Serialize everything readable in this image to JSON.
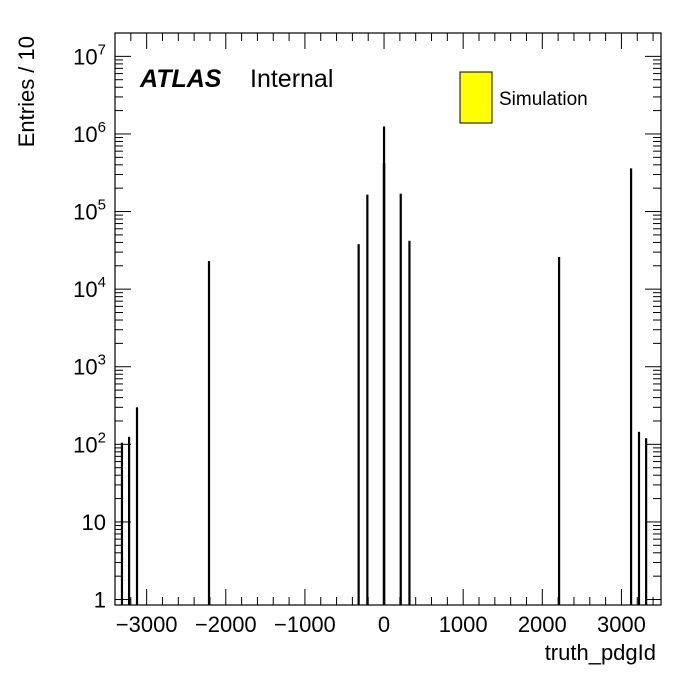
{
  "chart_data": {
    "type": "bar",
    "xlabel": "truth_pdgId",
    "ylabel": "Entries / 10",
    "yscale": "log",
    "xlim": [
      -3400,
      3500
    ],
    "ylim": [
      0.85,
      20000000
    ],
    "x_ticks": [
      -3000,
      -2000,
      -1000,
      0,
      1000,
      2000,
      3000
    ],
    "x_tick_labels": [
      "−3000",
      "−2000",
      "−1000",
      "0",
      "1000",
      "2000",
      "3000"
    ],
    "y_ticks": [
      {
        "base": "1",
        "exp": ""
      },
      {
        "base": "10",
        "exp": ""
      },
      {
        "base": "10",
        "exp": "2"
      },
      {
        "base": "10",
        "exp": "3"
      },
      {
        "base": "10",
        "exp": "4"
      },
      {
        "base": "10",
        "exp": "5"
      },
      {
        "base": "10",
        "exp": "6"
      },
      {
        "base": "10",
        "exp": "7"
      }
    ],
    "annotation": {
      "bold": "ATLAS",
      "normal": "Internal"
    },
    "legend": {
      "label": "Simulation",
      "color": "#ffff00",
      "placement": "top-right"
    },
    "bar_color": "#000000",
    "x": [
      -3312,
      -3222,
      -3122,
      -2212,
      -321,
      -211,
      -2,
      0,
      2,
      211,
      321,
      2212,
      3122,
      3222,
      3312
    ],
    "values": [
      105,
      125,
      300,
      23000,
      38000,
      165000,
      420000,
      1250000,
      420000,
      170000,
      42000,
      26000,
      360000,
      145,
      120
    ]
  }
}
